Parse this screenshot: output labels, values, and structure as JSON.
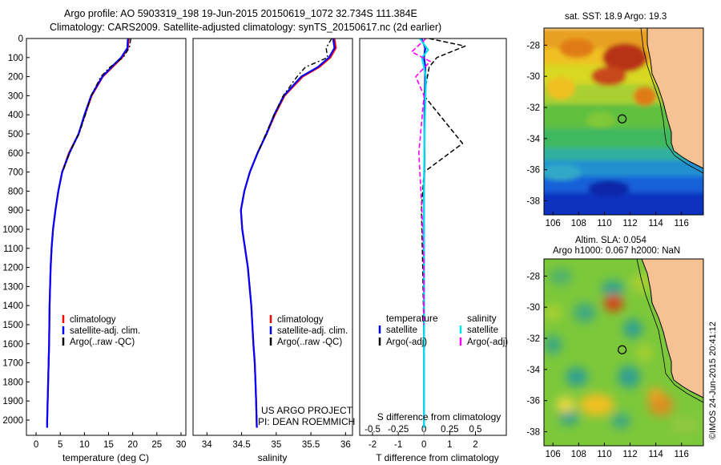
{
  "header": {
    "line1": "Argo profile: AO 5903319_198 19-Jun-2015 20150619_1072 32.734S 111.384E",
    "line2": "Climatology: CARS2009. Satellite-adjusted climatology: synTS_20150617.nc (2d earlier)"
  },
  "colors": {
    "climatology": "#ff0000",
    "satellite": "#0000ff",
    "argo": "#000000",
    "sal_satellite": "#00e5ee",
    "sal_argo": "#ff00ff",
    "land": "#f7c293"
  },
  "chart_data": [
    {
      "type": "line",
      "xlabel": "temperature (deg C)",
      "ylabel": "",
      "xlim": [
        -2,
        31
      ],
      "ylim": [
        2080,
        0
      ],
      "xticks": [
        "0",
        "5",
        "10",
        "15",
        "20",
        "25",
        "30"
      ],
      "yticks": [
        "0",
        "100",
        "200",
        "300",
        "400",
        "500",
        "600",
        "700",
        "800",
        "900",
        "1000",
        "1100",
        "1200",
        "1300",
        "1400",
        "1500",
        "1600",
        "1700",
        "1800",
        "1900",
        "2000"
      ],
      "legend": [
        "climatology",
        "satellite-adj. clim.",
        "Argo(..raw -QC)"
      ],
      "legend_position": "lower-center",
      "series": [
        {
          "name": "climatology",
          "x": [
            19.2,
            19.0,
            17.8,
            15.8,
            13.8,
            11.5,
            10.1,
            8.8,
            6.8,
            5.4,
            4.6,
            4.0,
            3.5,
            3.2,
            3.0,
            2.8,
            2.7,
            2.6,
            2.5,
            2.4,
            2.3,
            2.3
          ],
          "y": [
            0,
            50,
            100,
            150,
            200,
            300,
            400,
            500,
            600,
            700,
            800,
            900,
            1000,
            1100,
            1200,
            1400,
            1600,
            1700,
            1800,
            1900,
            2000,
            2040
          ]
        },
        {
          "name": "satellite-adj. clim.",
          "x": [
            19.0,
            18.9,
            17.6,
            15.6,
            13.7,
            11.4,
            10.0,
            8.8,
            6.9,
            5.4,
            4.6,
            4.0,
            3.5,
            3.2,
            3.0,
            2.8,
            2.7,
            2.6,
            2.5,
            2.4,
            2.3,
            2.3
          ],
          "y": [
            0,
            50,
            100,
            150,
            200,
            300,
            400,
            500,
            600,
            700,
            800,
            900,
            1000,
            1100,
            1200,
            1400,
            1600,
            1700,
            1800,
            1900,
            2000,
            2040
          ]
        },
        {
          "name": "Argo(..raw -QC)",
          "x": [
            19.6,
            19.3,
            18.0,
            15.3,
            13.4,
            11.4,
            10.2,
            8.9,
            6.9,
            5.5
          ],
          "y": [
            0,
            50,
            100,
            150,
            200,
            300,
            400,
            500,
            600,
            700
          ]
        }
      ]
    },
    {
      "type": "line",
      "xlabel": "salinity",
      "ylabel": "",
      "xlim": [
        33.8,
        36.1
      ],
      "ylim": [
        2080,
        0
      ],
      "xticks": [
        "34",
        "34.5",
        "35",
        "35.5",
        "36"
      ],
      "legend": [
        "climatology",
        "satellite-adj. clim.",
        "Argo(..raw -QC)"
      ],
      "legend_position": "lower-center",
      "annotation": [
        "US ARGO PROJECT",
        "PI: DEAN ROEMMICH"
      ],
      "series": [
        {
          "name": "climatology",
          "x": [
            35.84,
            35.86,
            35.78,
            35.62,
            35.38,
            35.12,
            34.98,
            34.86,
            34.73,
            34.62,
            34.54,
            34.49,
            34.51,
            34.55,
            34.59,
            34.64,
            34.67,
            34.69,
            34.7,
            34.71,
            34.72
          ],
          "y": [
            0,
            50,
            100,
            150,
            200,
            300,
            400,
            500,
            600,
            700,
            800,
            900,
            1000,
            1100,
            1200,
            1400,
            1600,
            1700,
            1800,
            1900,
            2040
          ]
        },
        {
          "name": "satellite-adj. clim.",
          "x": [
            35.82,
            35.84,
            35.76,
            35.6,
            35.36,
            35.11,
            34.97,
            34.86,
            34.73,
            34.62,
            34.54,
            34.49,
            34.51,
            34.55,
            34.59,
            34.64,
            34.67,
            34.69,
            34.7,
            34.71,
            34.72
          ],
          "y": [
            0,
            50,
            100,
            150,
            200,
            300,
            400,
            500,
            600,
            700,
            800,
            900,
            1000,
            1100,
            1200,
            1400,
            1600,
            1700,
            1800,
            1900,
            2040
          ]
        },
        {
          "name": "Argo(..raw -QC)",
          "x": [
            35.8,
            35.72,
            35.74,
            35.42,
            35.3,
            35.1,
            34.97,
            34.85,
            34.73
          ],
          "y": [
            0,
            50,
            100,
            150,
            200,
            300,
            400,
            500,
            600
          ]
        }
      ]
    },
    {
      "type": "line",
      "xlabel": "T difference from climatology",
      "x2label": "S difference from climatology",
      "ylabel": "",
      "xlim": [
        -2.5,
        3.2
      ],
      "x2lim": [
        -0.625,
        0.8
      ],
      "ylim": [
        2080,
        0
      ],
      "xticks": [
        "-2",
        "-1",
        "0",
        "1",
        "2"
      ],
      "x2ticks": [
        "-0.5",
        "-0.25",
        "0",
        "0.25",
        "0.5"
      ],
      "legend_temperature_header": "temperature",
      "legend_salinity_header": "salinity",
      "legend": [
        "satellite",
        "Argo(-adj)",
        "satellite",
        "Argo(-adj)"
      ],
      "series": [
        {
          "name": "satellite",
          "x": [
            -0.1,
            0.05,
            0.0,
            0.05,
            0.05,
            0.02,
            0.02,
            0.0,
            0.0,
            0.0,
            0.0
          ],
          "y": [
            0,
            50,
            100,
            150,
            200,
            400,
            600,
            800,
            1000,
            1500,
            2040
          ]
        },
        {
          "name": "Argo(-adj)",
          "x": [
            0.2,
            1.6,
            0.5,
            0.2,
            0.0,
            1.5,
            0.0,
            -0.1,
            -0.05,
            0.0,
            0.0
          ],
          "y": [
            0,
            40,
            100,
            150,
            300,
            550,
            700,
            900,
            1200,
            1600,
            2040
          ]
        },
        {
          "name": "satellite",
          "x": [
            -0.04,
            0.04,
            -0.02,
            0.02,
            0.01,
            0.0,
            0.0,
            0.0,
            0.0
          ],
          "y": [
            0,
            60,
            100,
            200,
            400,
            700,
            1000,
            1500,
            2040
          ]
        },
        {
          "name": "Argo(-adj)",
          "x": [
            0.02,
            -0.12,
            0.06,
            -0.08,
            0.0,
            -0.05,
            -0.02,
            0.0,
            0.0
          ],
          "y": [
            0,
            70,
            120,
            200,
            300,
            600,
            900,
            1200,
            1500
          ]
        }
      ]
    },
    {
      "type": "heatmap",
      "title": "sat. SST: 18.9 Argo: 19.3",
      "xticks": [
        "106",
        "108",
        "110",
        "112",
        "114",
        "116"
      ],
      "yticks": [
        "-28",
        "-30",
        "-32",
        "-34",
        "-36",
        "-38"
      ],
      "xlim": [
        105.3,
        117.7
      ],
      "ylim": [
        -38.9,
        -26.9
      ],
      "marker": {
        "lon": 111.384,
        "lat": -32.734
      }
    },
    {
      "type": "heatmap",
      "title": "Altim. SLA: 0.054",
      "subtitle": "Argo h1000: 0.067 h2000: NaN",
      "xticks": [
        "106",
        "108",
        "110",
        "112",
        "114",
        "116"
      ],
      "yticks": [
        "-28",
        "-30",
        "-32",
        "-34",
        "-36",
        "-38"
      ],
      "xlim": [
        105.3,
        117.7
      ],
      "ylim": [
        -38.9,
        -26.9
      ],
      "marker": {
        "lon": 111.384,
        "lat": -32.734
      }
    }
  ],
  "footer": {
    "credit": "©IMOS 24-Jun-2015 20:41:12"
  }
}
